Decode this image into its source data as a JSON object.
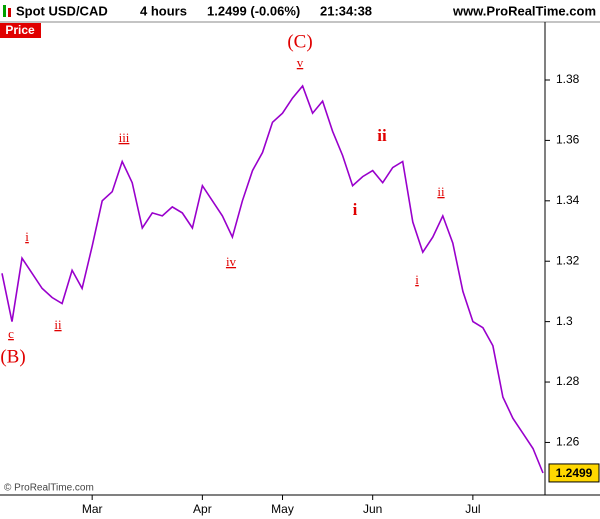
{
  "header": {
    "symbol": "Spot USD/CAD",
    "timeframe": "4 hours",
    "quote": "1.2499 (-0.06%)",
    "time": "21:34:38",
    "site": "www.ProRealTime.com",
    "panel": "Price",
    "copyright": "© ProRealTime.com"
  },
  "chart_data": {
    "type": "line",
    "categories": [
      null,
      null,
      null,
      null,
      null,
      null,
      null,
      null,
      null,
      "Mar",
      null,
      null,
      null,
      null,
      null,
      null,
      null,
      null,
      null,
      null,
      "Apr",
      null,
      null,
      null,
      null,
      null,
      null,
      null,
      "May",
      null,
      null,
      null,
      null,
      null,
      null,
      null,
      null,
      "Jun",
      null,
      null,
      null,
      null,
      null,
      null,
      null,
      null,
      null,
      "Jul",
      null,
      null,
      null,
      null,
      null,
      null,
      null
    ],
    "series": [
      {
        "name": "USD/CAD",
        "color": "#9900cc",
        "values": [
          1.316,
          1.3,
          1.321,
          1.316,
          1.311,
          1.308,
          1.306,
          1.317,
          1.311,
          1.325,
          1.34,
          1.343,
          1.353,
          1.346,
          1.331,
          1.336,
          1.335,
          1.338,
          1.336,
          1.331,
          1.345,
          1.34,
          1.335,
          1.328,
          1.34,
          1.35,
          1.356,
          1.366,
          1.369,
          1.374,
          1.378,
          1.369,
          1.373,
          1.363,
          1.355,
          1.345,
          1.348,
          1.35,
          1.346,
          1.351,
          1.353,
          1.333,
          1.323,
          1.328,
          1.335,
          1.326,
          1.31,
          1.3,
          1.298,
          1.292,
          1.275,
          1.268,
          1.263,
          1.258,
          1.2499
        ]
      }
    ],
    "ylim": [
      1.2426,
      1.3992
    ],
    "yticks": [
      1.26,
      1.28,
      1.3,
      1.32,
      1.34,
      1.36,
      1.38
    ],
    "annotations": [
      "(C)",
      "v",
      "iii",
      "iv",
      "i",
      "ii",
      "c",
      "(B)",
      "i",
      "ii",
      "i",
      "ii"
    ]
  }
}
